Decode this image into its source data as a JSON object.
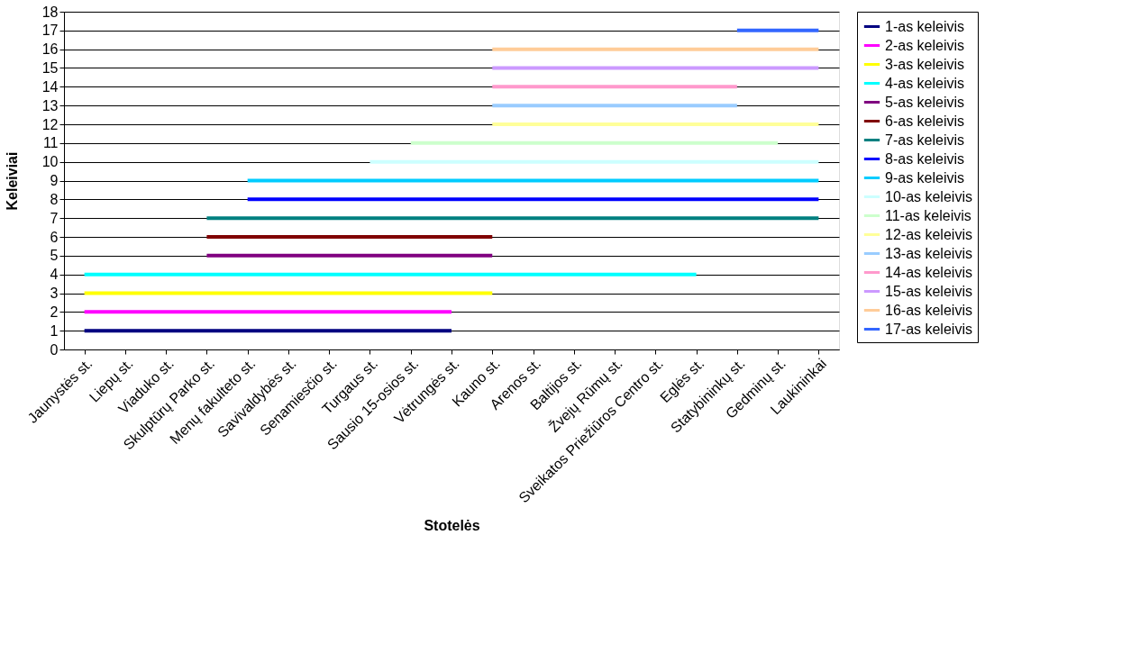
{
  "chart_data": {
    "type": "line",
    "xlabel": "Stotelės",
    "ylabel": "Keleiviai",
    "categories": [
      "Jaunystės st.",
      "Liepų st.",
      "Viaduko st.",
      "Skulptūrų Parko st.",
      "Menų fakulteto st.",
      "Savivaldybės st.",
      "Senamiesčio st.",
      "Turgaus st.",
      "Sausio 15-osios st.",
      "Vėtrungės st.",
      "Kauno st.",
      "Arenos st.",
      "Baltijos st.",
      "Žvejų Rūmų st.",
      "Sveikatos Priežiūros Centro st.",
      "Eglės st.",
      "Statybininkų st.",
      "Gedminų st.",
      "Laukininkai"
    ],
    "ylim": [
      0,
      18
    ],
    "yticks": [
      0,
      1,
      2,
      3,
      4,
      5,
      6,
      7,
      8,
      9,
      10,
      11,
      12,
      13,
      14,
      15,
      16,
      17,
      18
    ],
    "grid": "y",
    "legend": "right",
    "marker": "none",
    "line_style": "solid",
    "series": [
      {
        "name": "1-as keleivis",
        "color": "#000080",
        "values": [
          1,
          1,
          1,
          1,
          1,
          1,
          1,
          1,
          1,
          1,
          null,
          null,
          null,
          null,
          null,
          null,
          null,
          null,
          null
        ]
      },
      {
        "name": "2-as keleivis",
        "color": "#ff00ff",
        "values": [
          2,
          2,
          2,
          2,
          2,
          2,
          2,
          2,
          2,
          2,
          null,
          null,
          null,
          null,
          null,
          null,
          null,
          null,
          null
        ]
      },
      {
        "name": "3-as keleivis",
        "color": "#ffff00",
        "values": [
          3,
          3,
          3,
          3,
          3,
          3,
          3,
          3,
          3,
          3,
          3,
          null,
          null,
          null,
          null,
          null,
          null,
          null,
          null
        ]
      },
      {
        "name": "4-as keleivis",
        "color": "#00ffff",
        "values": [
          4,
          4,
          4,
          4,
          4,
          4,
          4,
          4,
          4,
          4,
          4,
          4,
          4,
          4,
          4,
          4,
          null,
          null,
          null
        ]
      },
      {
        "name": "5-as keleivis",
        "color": "#800080",
        "values": [
          null,
          null,
          null,
          5,
          5,
          5,
          5,
          5,
          5,
          5,
          5,
          null,
          null,
          null,
          null,
          null,
          null,
          null,
          null
        ]
      },
      {
        "name": "6-as keleivis",
        "color": "#800000",
        "values": [
          null,
          null,
          null,
          6,
          6,
          6,
          6,
          6,
          6,
          6,
          6,
          null,
          null,
          null,
          null,
          null,
          null,
          null,
          null
        ]
      },
      {
        "name": "7-as keleivis",
        "color": "#008080",
        "values": [
          null,
          null,
          null,
          7,
          7,
          7,
          7,
          7,
          7,
          7,
          7,
          7,
          7,
          7,
          7,
          7,
          7,
          7,
          7
        ]
      },
      {
        "name": "8-as keleivis",
        "color": "#0000ff",
        "values": [
          null,
          null,
          null,
          null,
          8,
          8,
          8,
          8,
          8,
          8,
          8,
          8,
          8,
          8,
          8,
          8,
          8,
          8,
          8
        ]
      },
      {
        "name": "9-as keleivis",
        "color": "#00ccff",
        "values": [
          null,
          null,
          null,
          null,
          9,
          9,
          9,
          9,
          9,
          9,
          9,
          9,
          9,
          9,
          9,
          9,
          9,
          9,
          9
        ]
      },
      {
        "name": "10-as keleivis",
        "color": "#ccffff",
        "values": [
          null,
          null,
          null,
          null,
          null,
          null,
          null,
          10,
          10,
          10,
          10,
          10,
          10,
          10,
          10,
          10,
          10,
          10,
          10
        ]
      },
      {
        "name": "11-as keleivis",
        "color": "#ccffcc",
        "values": [
          null,
          null,
          null,
          null,
          null,
          null,
          null,
          null,
          11,
          11,
          11,
          11,
          11,
          11,
          11,
          11,
          11,
          11,
          null
        ]
      },
      {
        "name": "12-as keleivis",
        "color": "#ffff99",
        "values": [
          null,
          null,
          null,
          null,
          null,
          null,
          null,
          null,
          null,
          null,
          12,
          12,
          12,
          12,
          12,
          12,
          12,
          12,
          12
        ]
      },
      {
        "name": "13-as keleivis",
        "color": "#99ccff",
        "values": [
          null,
          null,
          null,
          null,
          null,
          null,
          null,
          null,
          null,
          null,
          13,
          13,
          13,
          13,
          13,
          13,
          13,
          null,
          null
        ]
      },
      {
        "name": "14-as keleivis",
        "color": "#ff99cc",
        "values": [
          null,
          null,
          null,
          null,
          null,
          null,
          null,
          null,
          null,
          null,
          14,
          14,
          14,
          14,
          14,
          14,
          14,
          null,
          null
        ]
      },
      {
        "name": "15-as keleivis",
        "color": "#cc99ff",
        "values": [
          null,
          null,
          null,
          null,
          null,
          null,
          null,
          null,
          null,
          null,
          15,
          15,
          15,
          15,
          15,
          15,
          15,
          15,
          15
        ]
      },
      {
        "name": "16-as keleivis",
        "color": "#ffcc99",
        "values": [
          null,
          null,
          null,
          null,
          null,
          null,
          null,
          null,
          null,
          null,
          16,
          16,
          16,
          16,
          16,
          16,
          16,
          16,
          16
        ]
      },
      {
        "name": "17-as keleivis",
        "color": "#3366ff",
        "values": [
          null,
          null,
          null,
          null,
          null,
          null,
          null,
          null,
          null,
          null,
          null,
          null,
          null,
          null,
          null,
          null,
          17,
          17,
          17
        ]
      }
    ]
  }
}
